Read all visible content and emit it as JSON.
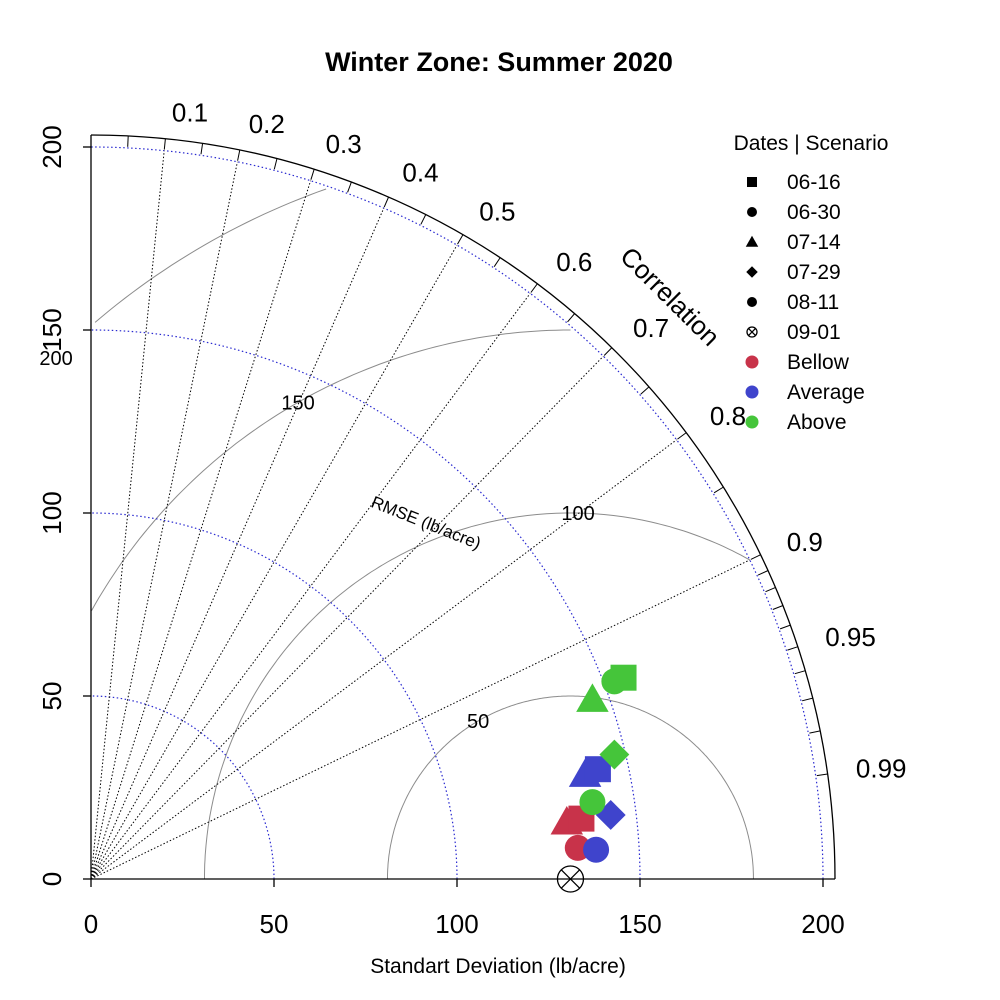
{
  "chart_data": {
    "type": "taylor-diagram",
    "title": "Winter Zone: Summer 2020",
    "xlabel": "Standart Deviation (lb/acre)",
    "ylabel": "",
    "sd_range": [
      0,
      200
    ],
    "sd_ticks": [
      "0",
      "50",
      "100",
      "150",
      "200"
    ],
    "sd_gridlines": [
      50,
      100,
      150,
      200
    ],
    "reference_sd": 131,
    "correlation_axis_label": "Correlation",
    "correlation_labels": [
      "0.1",
      "0.2",
      "0.3",
      "0.4",
      "0.5",
      "0.6",
      "0.7",
      "0.8",
      "0.9",
      "0.95",
      "0.99"
    ],
    "rmse_axis_label": "RMSE (lb/acre)",
    "rmse_contours": [
      50,
      100,
      150,
      200
    ],
    "rmse_labels": [
      "50",
      "100",
      "150",
      "200"
    ],
    "legend": {
      "title": "Dates | Scenario",
      "position": "top-right",
      "dates": [
        {
          "label": "06-16",
          "symbol": "square"
        },
        {
          "label": "06-30",
          "symbol": "circle"
        },
        {
          "label": "07-14",
          "symbol": "triangle"
        },
        {
          "label": "07-29",
          "symbol": "diamond"
        },
        {
          "label": "08-11",
          "symbol": "circle"
        },
        {
          "label": "09-01",
          "symbol": "circle-x"
        }
      ],
      "scenarios": [
        {
          "label": "Bellow",
          "color": "#C8334A"
        },
        {
          "label": "Average",
          "color": "#3F44CC"
        },
        {
          "label": "Above",
          "color": "#45C53A"
        }
      ]
    },
    "reference_point": {
      "date": "09-01",
      "x": 131,
      "y": 0
    },
    "series": [
      {
        "date": "06-30",
        "scenario": "Bellow",
        "x": 133,
        "y": 8.5
      },
      {
        "date": "07-14",
        "scenario": "Bellow",
        "x": 130,
        "y": 15.5
      },
      {
        "date": "06-16",
        "scenario": "Bellow",
        "x": 134,
        "y": 16.5
      },
      {
        "date": "08-11",
        "scenario": "Average",
        "x": 138,
        "y": 8
      },
      {
        "date": "07-29",
        "scenario": "Average",
        "x": 142,
        "y": 17.5
      },
      {
        "date": "07-14",
        "scenario": "Average",
        "x": 135,
        "y": 28.5
      },
      {
        "date": "06-16",
        "scenario": "Average",
        "x": 138.5,
        "y": 30
      },
      {
        "date": "06-30",
        "scenario": "Above",
        "x": 137,
        "y": 21
      },
      {
        "date": "07-29",
        "scenario": "Above",
        "x": 143,
        "y": 34
      },
      {
        "date": "07-14",
        "scenario": "Above",
        "x": 137,
        "y": 49
      },
      {
        "date": "08-11",
        "scenario": "Above",
        "x": 143,
        "y": 54
      },
      {
        "date": "06-16",
        "scenario": "Above",
        "x": 145.5,
        "y": 55
      }
    ]
  }
}
